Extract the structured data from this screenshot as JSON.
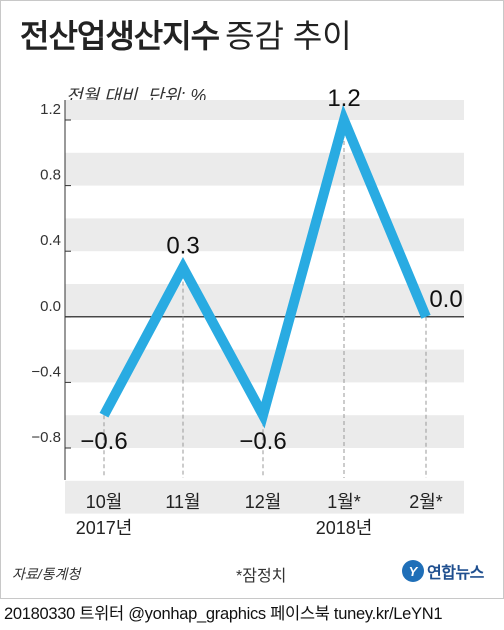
{
  "title_bold": "전산업생산지수",
  "title_normal": "증감 추이",
  "source": "자료/통계청",
  "note": "*잠정치",
  "logo": {
    "mark": "Y",
    "text": "연합뉴스"
  },
  "footer": "20180330 트위터 @yonhap_graphics  페이스북 tuney.kr/LeYN1",
  "colors": {
    "line": "#29abe2",
    "band": "#ebebeb",
    "grid": "#bdbdbd"
  },
  "chart_data": {
    "type": "line",
    "ylabel": "전월 대비, 단위: %",
    "ylim": [
      -1.0,
      1.4
    ],
    "yticks": [
      "1.2",
      "0.8",
      "0.4",
      "0.0",
      "−0.4",
      "−0.8"
    ],
    "ytick_values": [
      1.2,
      0.8,
      0.4,
      0.0,
      -0.4,
      -0.8
    ],
    "categories": [
      {
        "line1": "10월",
        "line2": "2017년"
      },
      {
        "line1": "11월",
        "line2": ""
      },
      {
        "line1": "12월",
        "line2": ""
      },
      {
        "line1": "1월*",
        "line2": "2018년"
      },
      {
        "line1": "2월*",
        "line2": ""
      }
    ],
    "values": [
      -0.6,
      0.3,
      -0.6,
      1.2,
      0.0
    ],
    "data_labels": [
      "−0.6",
      "0.3",
      "−0.6",
      "1.2",
      "0.0"
    ]
  }
}
